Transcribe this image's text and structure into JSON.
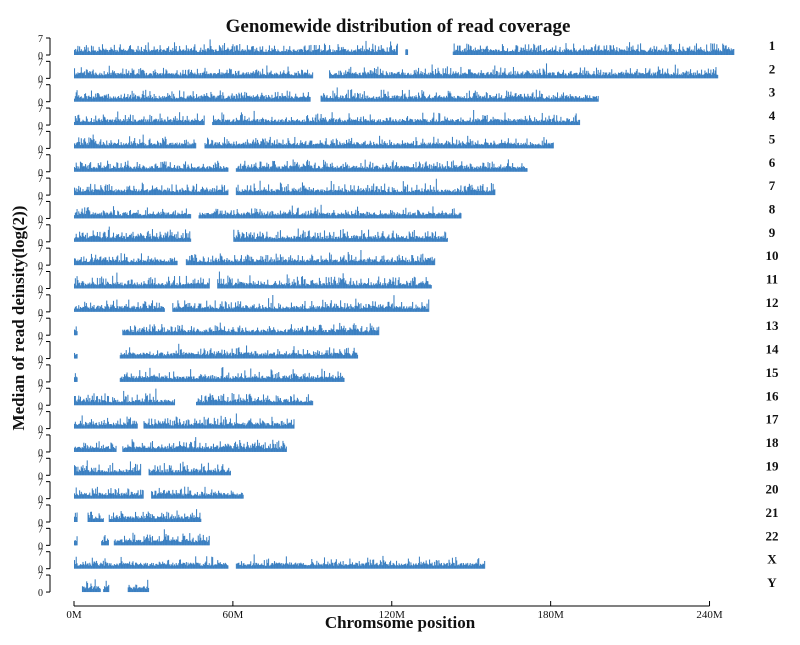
{
  "chart_data": {
    "type": "area",
    "title": "Genomewide distribution of read coverage",
    "xlabel": "Chromsome position",
    "ylabel": "Median of read deinsity(log(2))",
    "x_ticks": [
      "0M",
      "60M",
      "120M",
      "180M",
      "240M"
    ],
    "x_tick_values": [
      0,
      60,
      120,
      180,
      240
    ],
    "xlim": [
      0,
      250
    ],
    "ylim": [
      0,
      7
    ],
    "y_ticks": [
      "0",
      "7"
    ],
    "color": "#3a7fc1",
    "chromosomes": [
      {
        "name": "1",
        "length": 249,
        "start": 0,
        "gaps": [
          [
            122,
            125
          ],
          [
            125.8,
            143
          ]
        ],
        "density": 0.75
      },
      {
        "name": "2",
        "length": 243,
        "start": 0,
        "gaps": [
          [
            90,
            96
          ]
        ],
        "density": 0.6
      },
      {
        "name": "3",
        "length": 198,
        "start": 0,
        "gaps": [
          [
            89,
            93
          ]
        ],
        "density": 0.65
      },
      {
        "name": "4",
        "length": 191,
        "start": 0,
        "gaps": [
          [
            49,
            52
          ]
        ],
        "density": 0.55
      },
      {
        "name": "5",
        "length": 181,
        "start": 0,
        "gaps": [
          [
            46,
            49
          ]
        ],
        "density": 0.6
      },
      {
        "name": "6",
        "length": 171,
        "start": 0,
        "gaps": [
          [
            58,
            61
          ]
        ],
        "density": 0.7
      },
      {
        "name": "7",
        "length": 159,
        "start": 0,
        "gaps": [
          [
            58,
            61
          ]
        ],
        "density": 0.7
      },
      {
        "name": "8",
        "length": 146,
        "start": 0,
        "gaps": [
          [
            44,
            47
          ]
        ],
        "density": 0.55
      },
      {
        "name": "9",
        "length": 141,
        "start": 0,
        "gaps": [
          [
            44,
            60
          ]
        ],
        "density": 0.75
      },
      {
        "name": "10",
        "length": 136,
        "start": 0,
        "gaps": [
          [
            39,
            42
          ]
        ],
        "density": 0.7
      },
      {
        "name": "11",
        "length": 135,
        "start": 0,
        "gaps": [
          [
            51,
            54
          ]
        ],
        "density": 0.8
      },
      {
        "name": "12",
        "length": 134,
        "start": 0,
        "gaps": [
          [
            34,
            37
          ]
        ],
        "density": 0.75
      },
      {
        "name": "13",
        "length": 115,
        "start": 0,
        "gaps": [
          [
            1,
            18
          ]
        ],
        "density": 0.6
      },
      {
        "name": "14",
        "length": 107,
        "start": 0,
        "gaps": [
          [
            1,
            17
          ]
        ],
        "density": 0.6
      },
      {
        "name": "15",
        "length": 102,
        "start": 0,
        "gaps": [
          [
            1,
            17
          ]
        ],
        "density": 0.55
      },
      {
        "name": "16",
        "length": 90,
        "start": 0,
        "gaps": [
          [
            38,
            46
          ]
        ],
        "density": 0.75
      },
      {
        "name": "17",
        "length": 83,
        "start": 0,
        "gaps": [
          [
            24,
            26
          ]
        ],
        "density": 0.8
      },
      {
        "name": "18",
        "length": 80,
        "start": 0,
        "gaps": [
          [
            16,
            18
          ]
        ],
        "density": 0.65
      },
      {
        "name": "19",
        "length": 59,
        "start": 0,
        "gaps": [
          [
            25,
            28
          ]
        ],
        "density": 0.85
      },
      {
        "name": "20",
        "length": 64,
        "start": 0,
        "gaps": [
          [
            26,
            29
          ]
        ],
        "density": 0.75
      },
      {
        "name": "21",
        "length": 48,
        "start": 0,
        "gaps": [
          [
            1,
            5
          ],
          [
            11,
            13
          ]
        ],
        "density": 0.6
      },
      {
        "name": "22",
        "length": 51,
        "start": 0,
        "gaps": [
          [
            1,
            10
          ],
          [
            13,
            15
          ]
        ],
        "density": 0.85
      },
      {
        "name": "X",
        "length": 155,
        "start": 0,
        "gaps": [
          [
            58,
            61
          ]
        ],
        "density": 0.45
      },
      {
        "name": "Y",
        "length": 28,
        "start": 3,
        "gaps": [
          [
            10,
            11
          ],
          [
            13,
            20
          ]
        ],
        "density": 0.35
      }
    ]
  }
}
